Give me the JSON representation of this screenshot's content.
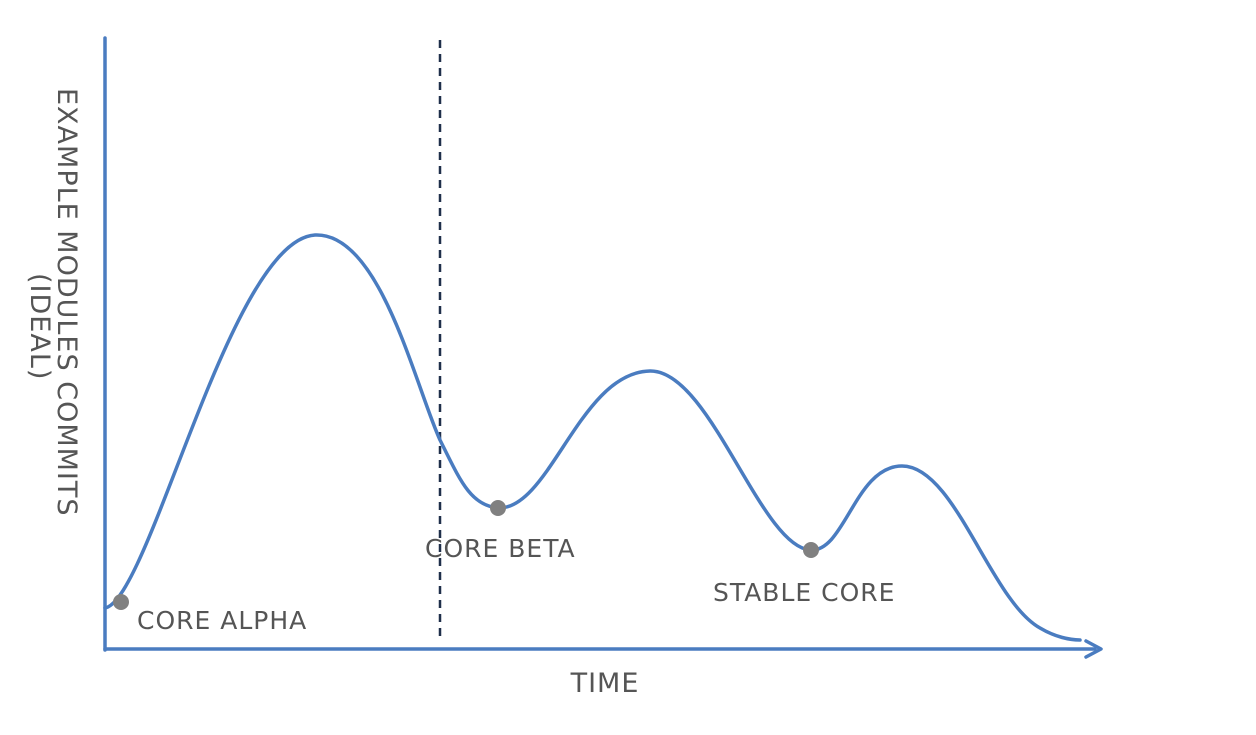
{
  "chart_data": {
    "type": "line",
    "title": "",
    "xlabel": "TIME",
    "ylabel": "EXAMPLE MODULES COMMITS (IDEAL)",
    "ylabel_lines": [
      "EXAMPLE MODULES COMMITS",
      "(IDEAL)"
    ],
    "axis_ticks": false,
    "grid": false,
    "colors": {
      "axis": "#4a7cc0",
      "curve": "#4a7cc0",
      "marker": "#808080",
      "divider": "#1f2f4a",
      "label": "#555555"
    },
    "annotations": [
      {
        "label": "CORE ALPHA"
      },
      {
        "label": "CORE BETA"
      },
      {
        "label": "STABLE CORE"
      }
    ]
  }
}
